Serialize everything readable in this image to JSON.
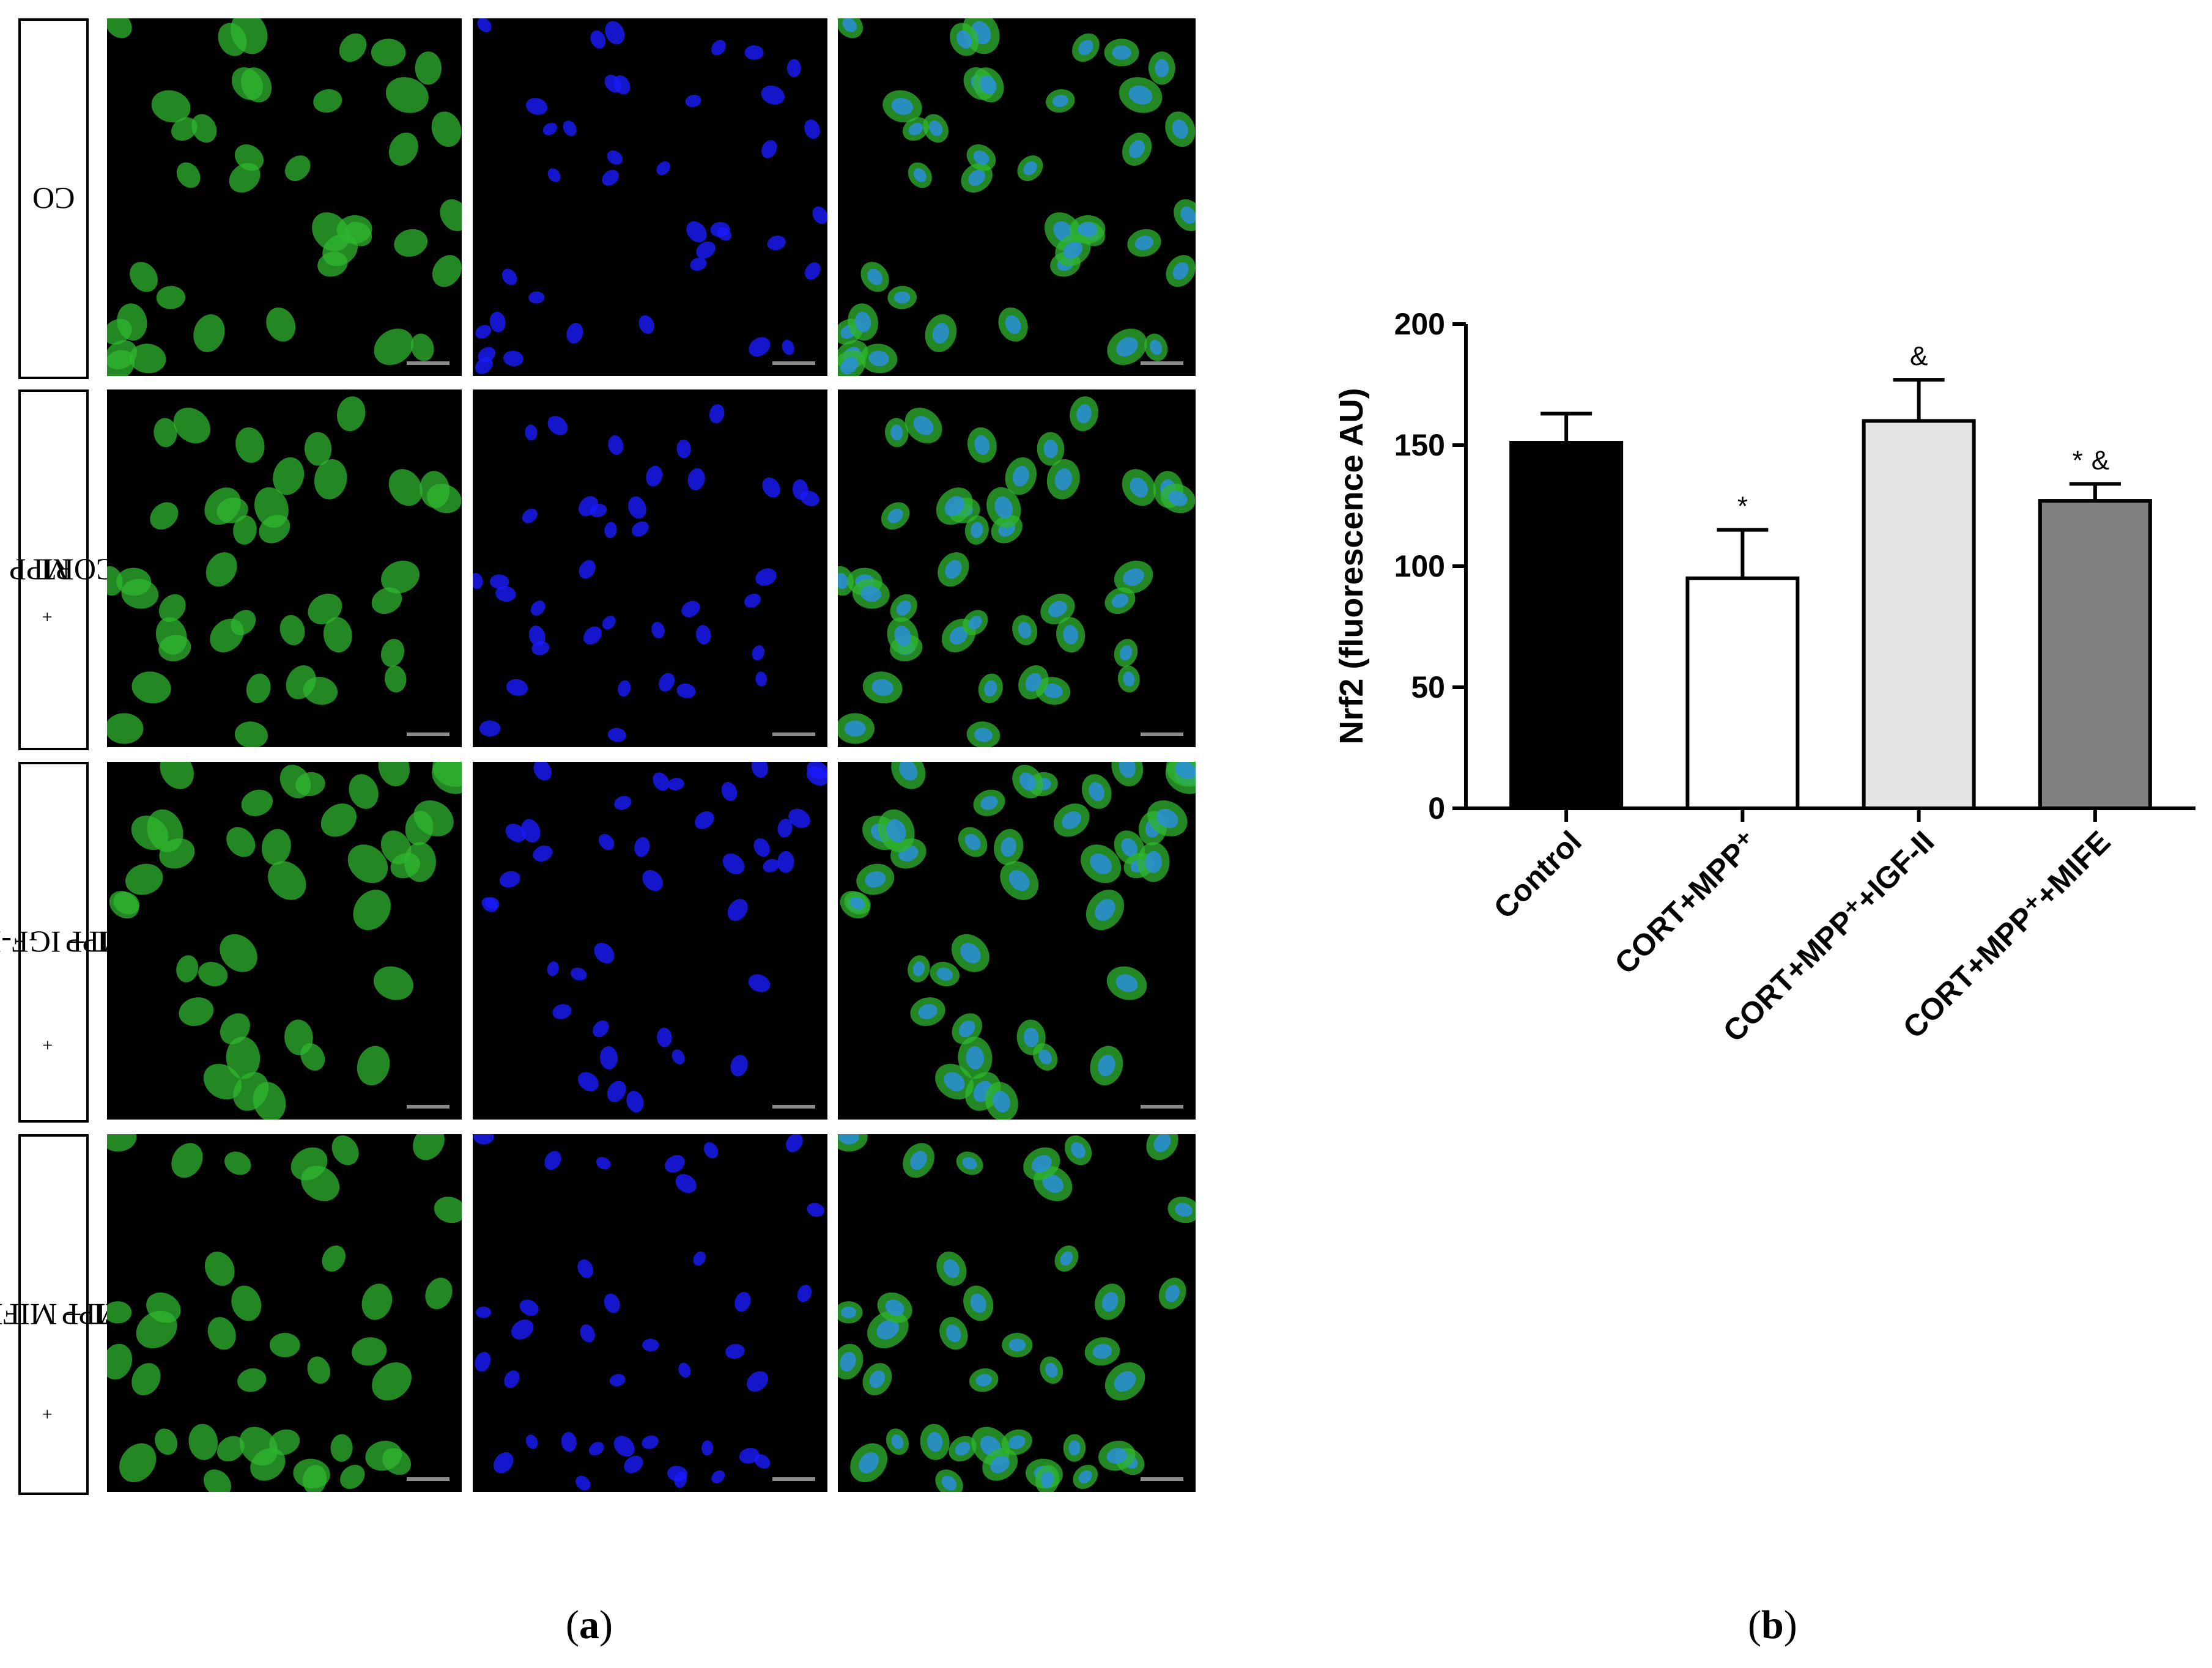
{
  "panel_a": {
    "rows": [
      {
        "label_main": "CO",
        "label_sup": "",
        "label_rest": ""
      },
      {
        "label_main": "MPP",
        "label_sup": "+",
        "label_rest": "+ CORT"
      },
      {
        "label_main": "MPP",
        "label_sup": "+",
        "label_rest": "+ CORT + IGF-II"
      },
      {
        "label_main": "MPP",
        "label_sup": "+",
        "label_rest": "+ CORT + MIFE"
      }
    ],
    "channels": [
      "green-nrf2",
      "blue-dapi",
      "merged"
    ],
    "channel_colors": {
      "green": "#2fb52f",
      "blue": "#1a1aff",
      "merged_nucleus": "#2a8fd8"
    },
    "tag_open": "(",
    "tag_letter": "a",
    "tag_close": ")"
  },
  "panel_b": {
    "tag_open": "(",
    "tag_letter": "b",
    "tag_close": ")"
  },
  "chart_data": {
    "type": "bar",
    "categories": [
      "Control",
      "CORT+MPP⁺",
      "CORT+MPP⁺+IGF-II",
      "CORT+MPP⁺+MIFE"
    ],
    "values": [
      151,
      95,
      160,
      127
    ],
    "errors": [
      12,
      20,
      17,
      7
    ],
    "annotations": [
      "",
      "*",
      "&",
      "*&"
    ],
    "bar_colors": [
      "#000000",
      "#ffffff",
      "#e4e4e4",
      "#808080"
    ],
    "title": "",
    "xlabel": "",
    "ylabel": "Nrf2 (fluorescence AU)",
    "ylim": [
      0,
      200
    ],
    "yticks": [
      0,
      50,
      100,
      150,
      200
    ],
    "grid": false
  }
}
